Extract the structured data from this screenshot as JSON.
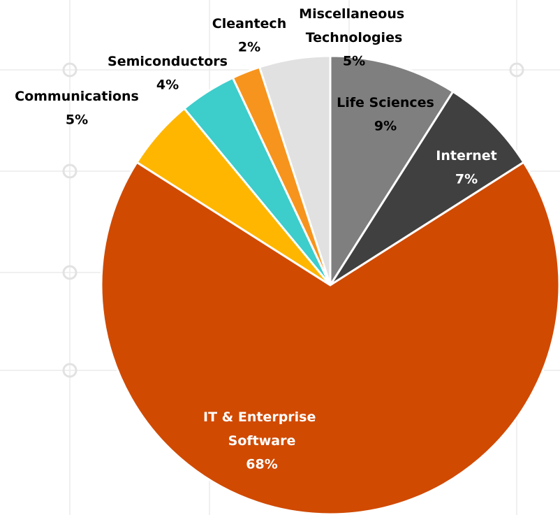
{
  "chart_data": {
    "type": "pie",
    "categories": [
      "Life Sciences",
      "Internet",
      "IT & Enterprise Software",
      "Communications",
      "Semiconductors",
      "Cleantech",
      "Miscellaneous Technologies"
    ],
    "values": [
      9,
      7,
      68,
      5,
      4,
      2,
      5
    ],
    "value_labels": [
      "9%",
      "7%",
      "68%",
      "5%",
      "4%",
      "2%",
      "5%"
    ],
    "colors": [
      "#7f7f7f",
      "#404040",
      "#d04a02",
      "#ffb600",
      "#3dcdcb",
      "#f7941d",
      "#e1e1e1"
    ]
  }
}
